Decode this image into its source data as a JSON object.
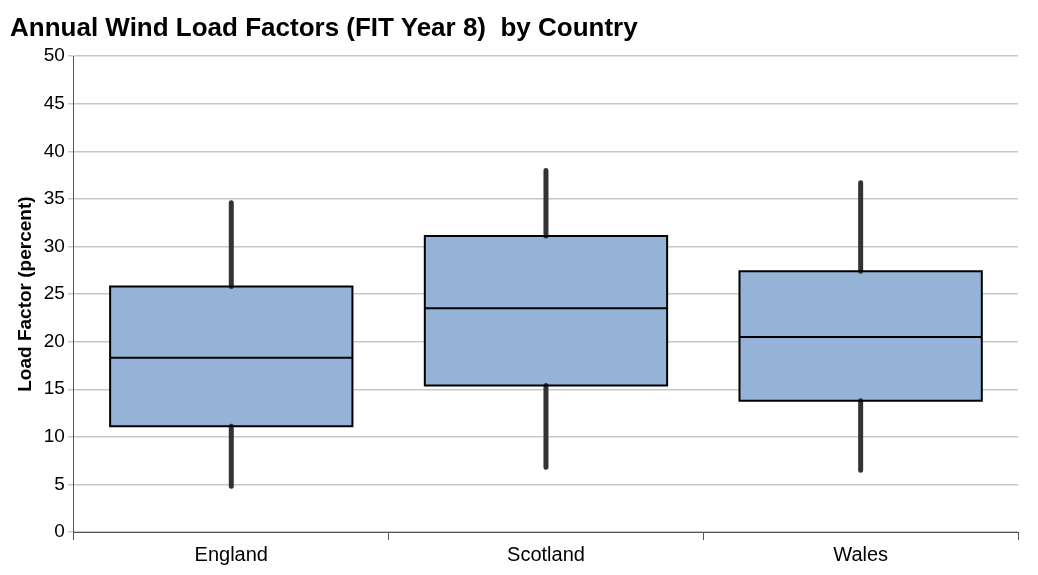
{
  "chart_data": {
    "type": "box",
    "title": "Annual Wind Load Factors (FIT Year 8)  by Country",
    "ylabel": "Load Factor (percent)",
    "categories": [
      "England",
      "Scotland",
      "Wales"
    ],
    "color": "#95b3d7",
    "boxes": [
      {
        "low": 4.8,
        "q1": 11.1,
        "median": 18.3,
        "q3": 25.8,
        "high": 34.6
      },
      {
        "low": 6.8,
        "q1": 15.4,
        "median": 23.5,
        "q3": 31.1,
        "high": 38.0
      },
      {
        "low": 6.5,
        "q1": 13.8,
        "median": 20.5,
        "q3": 27.4,
        "high": 36.7
      }
    ],
    "ylim": [
      0,
      50
    ],
    "yticks": [
      0,
      5,
      10,
      15,
      20,
      25,
      30,
      35,
      40,
      45,
      50
    ],
    "grid": "y",
    "legend": false
  }
}
